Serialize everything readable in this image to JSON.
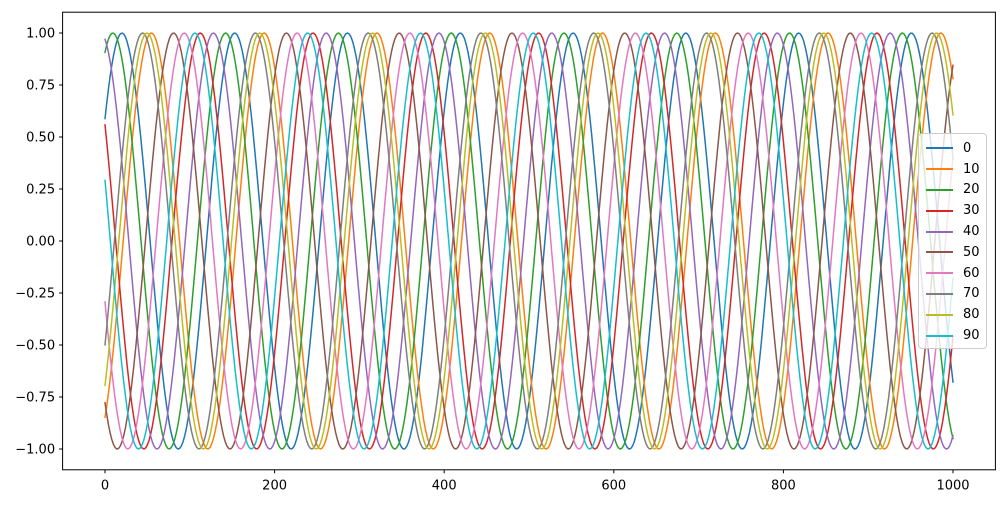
{
  "figure": {
    "background": "#ffffff",
    "frame_color": "#000000"
  },
  "chart_data": {
    "type": "line",
    "title": "",
    "xlabel": "",
    "ylabel": "",
    "grid": false,
    "x_range": [
      0,
      1000
    ],
    "xlim": [
      -50,
      1050
    ],
    "ylim": [
      -1.1,
      1.1
    ],
    "amplitude": 1.0,
    "period": 133,
    "sample_step": 2,
    "x_ticks": [
      0,
      200,
      400,
      600,
      800,
      1000
    ],
    "x_tick_labels": [
      "0",
      "200",
      "400",
      "600",
      "800",
      "1000"
    ],
    "y_ticks": [
      1.0,
      0.75,
      0.5,
      0.25,
      0.0,
      -0.25,
      -0.5,
      -0.75,
      -1.0
    ],
    "y_tick_labels": [
      "1.00",
      "0.75",
      "0.50",
      "0.25",
      "0.00",
      "−0.25",
      "−0.50",
      "−0.75",
      "−1.00"
    ],
    "legend_position": "upper-right",
    "series": [
      {
        "label": "0",
        "color": "#1f77b4",
        "phase_deg": 36,
        "first_peak_x": 20
      },
      {
        "label": "10",
        "color": "#ff7f0e",
        "phase_deg": 302,
        "first_peak_x": 55
      },
      {
        "label": "20",
        "color": "#2ca02c",
        "phase_deg": 65,
        "first_peak_x": 9
      },
      {
        "label": "30",
        "color": "#d62728",
        "phase_deg": 146,
        "first_peak_x": 112
      },
      {
        "label": "40",
        "color": "#9467bd",
        "phase_deg": 104,
        "first_peak_x": 128
      },
      {
        "label": "50",
        "color": "#8c564b",
        "phase_deg": 231,
        "first_peak_x": 81
      },
      {
        "label": "60",
        "color": "#e377c2",
        "phase_deg": 197,
        "first_peak_x": 93
      },
      {
        "label": "70",
        "color": "#7f7f7f",
        "phase_deg": 330,
        "first_peak_x": 44
      },
      {
        "label": "80",
        "color": "#bcbd22",
        "phase_deg": 316,
        "first_peak_x": 49
      },
      {
        "label": "90",
        "color": "#17becf",
        "phase_deg": 163,
        "first_peak_x": 106
      }
    ]
  }
}
